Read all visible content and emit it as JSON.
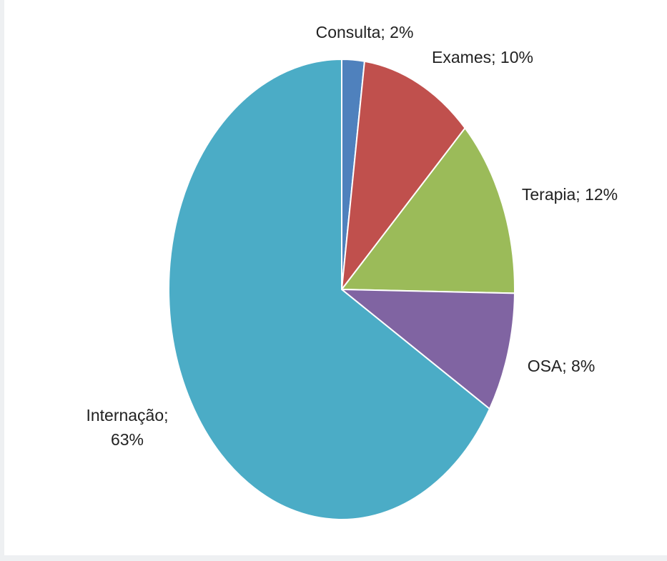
{
  "chart_data": {
    "type": "pie",
    "categories": [
      "Consulta",
      "Exames",
      "Terapia",
      "OSA",
      "Internação"
    ],
    "values": [
      2,
      10,
      12,
      8,
      63
    ],
    "value_labels": [
      "Consulta; 2%",
      "Exames; 10%",
      "Terapia; 12%",
      "OSA; 8%",
      "Internação; 63%"
    ],
    "colors": [
      "#4f81bd",
      "#c0504d",
      "#9bbb59",
      "#8064a2",
      "#4bacc6"
    ]
  }
}
